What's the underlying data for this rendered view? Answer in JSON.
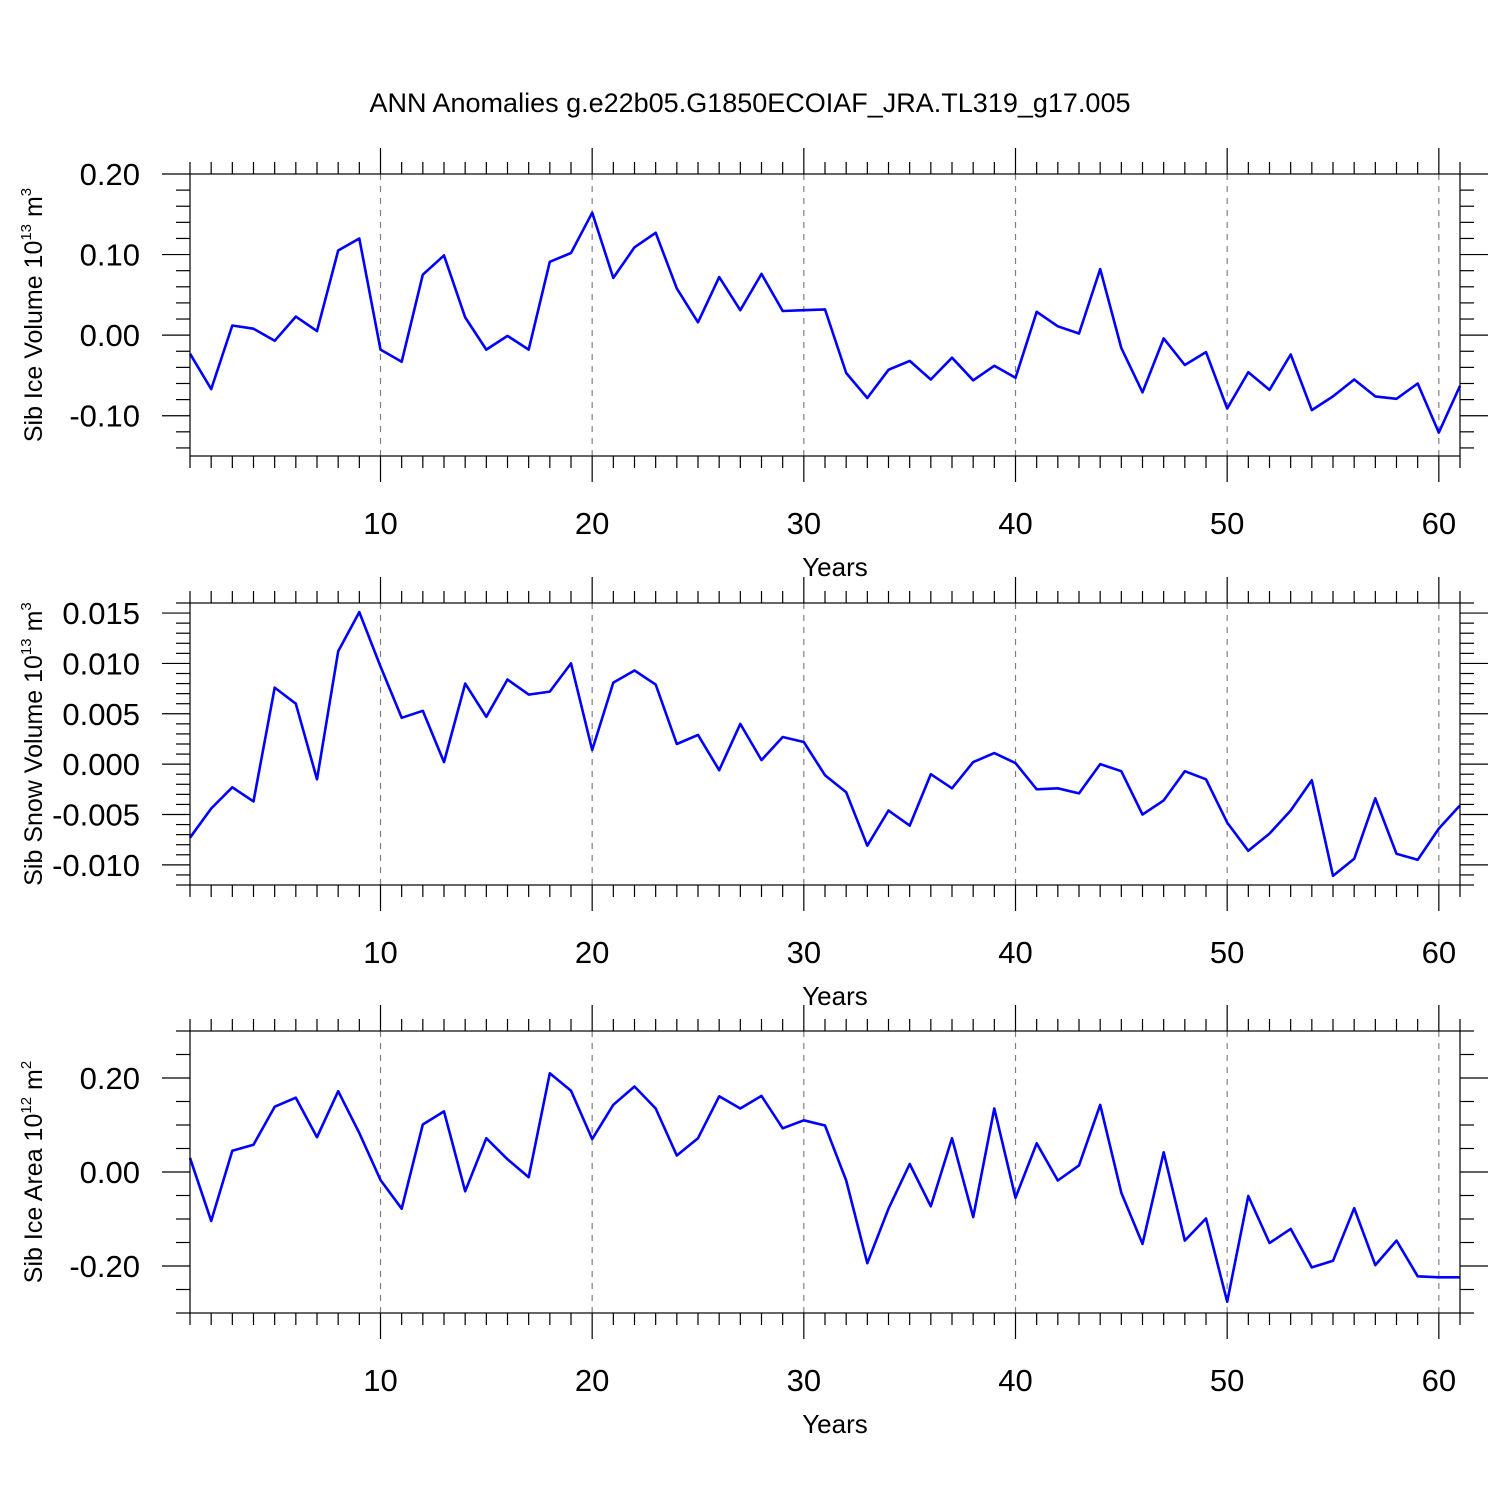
{
  "title": "ANN Anomalies g.e22b05.G1850ECOIAF_JRA.TL319_g17.005",
  "colors": {
    "line": "#0000ff",
    "frame": "#000000",
    "grid": "#808080"
  },
  "chart_data": [
    {
      "type": "line",
      "xlabel": "Years",
      "ylabel": {
        "text": "Sib Ice Volume 10",
        "exp": "13",
        "unit_text": " m",
        "unit_exp": "3"
      },
      "xlim": [
        1,
        61
      ],
      "ylim": [
        -0.15,
        0.2
      ],
      "xticks": [
        10,
        20,
        30,
        40,
        50,
        60
      ],
      "yticks": [
        0.2,
        0.1,
        0.0,
        -0.1
      ],
      "ytick_labels": [
        "0.20",
        "0.10",
        "0.00",
        "-0.10"
      ],
      "ytick_minor_step": 0.02,
      "x": [
        1,
        2,
        3,
        4,
        5,
        6,
        7,
        8,
        9,
        10,
        11,
        12,
        13,
        14,
        15,
        16,
        17,
        18,
        19,
        20,
        21,
        22,
        23,
        24,
        25,
        26,
        27,
        28,
        29,
        30,
        31,
        32,
        33,
        34,
        35,
        36,
        37,
        38,
        39,
        40,
        41,
        42,
        43,
        44,
        45,
        46,
        47,
        48,
        49,
        50,
        51,
        52,
        53,
        54,
        55,
        56,
        57,
        58,
        59,
        60,
        61
      ],
      "series": [
        {
          "values": [
            -0.023,
            -0.067,
            0.012,
            0.008,
            -0.007,
            0.023,
            0.005,
            0.105,
            0.12,
            -0.018,
            -0.033,
            0.075,
            0.099,
            0.022,
            -0.018,
            -0.001,
            -0.018,
            0.091,
            0.102,
            0.152,
            0.071,
            0.109,
            0.127,
            0.058,
            0.016,
            0.072,
            0.031,
            0.076,
            0.03,
            0.031,
            0.032,
            -0.047,
            -0.078,
            -0.043,
            -0.032,
            -0.055,
            -0.028,
            -0.056,
            -0.038,
            -0.053,
            0.029,
            0.011,
            0.002,
            0.082,
            -0.016,
            -0.071,
            -0.004,
            -0.037,
            -0.021,
            -0.091,
            -0.046,
            -0.068,
            -0.024,
            -0.093,
            -0.076,
            -0.055,
            -0.076,
            -0.079,
            -0.06,
            -0.121,
            -0.063
          ]
        }
      ]
    },
    {
      "type": "line",
      "xlabel": "Years",
      "ylabel": {
        "text": "Sib Snow Volume 10",
        "exp": "13",
        "unit_text": " m",
        "unit_exp": "3"
      },
      "xlim": [
        1,
        61
      ],
      "ylim": [
        -0.012,
        0.016
      ],
      "xticks": [
        10,
        20,
        30,
        40,
        50,
        60
      ],
      "yticks": [
        0.015,
        0.01,
        0.005,
        0.0,
        -0.005,
        -0.01
      ],
      "ytick_labels": [
        "0.015",
        "0.010",
        "0.005",
        "0.000",
        "-0.005",
        "-0.010"
      ],
      "ytick_minor_step": 0.001,
      "x": [
        1,
        2,
        3,
        4,
        5,
        6,
        7,
        8,
        9,
        10,
        11,
        12,
        13,
        14,
        15,
        16,
        17,
        18,
        19,
        20,
        21,
        22,
        23,
        24,
        25,
        26,
        27,
        28,
        29,
        30,
        31,
        32,
        33,
        34,
        35,
        36,
        37,
        38,
        39,
        40,
        41,
        42,
        43,
        44,
        45,
        46,
        47,
        48,
        49,
        50,
        51,
        52,
        53,
        54,
        55,
        56,
        57,
        58,
        59,
        60,
        61
      ],
      "series": [
        {
          "values": [
            -0.0073,
            -0.0044,
            -0.0023,
            -0.0037,
            0.0076,
            0.006,
            -0.0015,
            0.0112,
            0.0151,
            0.0097,
            0.0046,
            0.0053,
            0.0002,
            0.008,
            0.0047,
            0.0084,
            0.0069,
            0.0072,
            0.01,
            0.0014,
            0.0081,
            0.0093,
            0.0079,
            0.002,
            0.0029,
            -0.0006,
            0.004,
            0.0004,
            0.0027,
            0.0022,
            -0.0011,
            -0.0028,
            -0.0081,
            -0.0046,
            -0.0061,
            -0.001,
            -0.0024,
            0.0002,
            0.0011,
            0.0001,
            -0.0025,
            -0.0024,
            -0.0029,
            -0.0,
            -0.0007,
            -0.005,
            -0.0036,
            -0.0007,
            -0.0015,
            -0.0058,
            -0.0086,
            -0.0069,
            -0.0046,
            -0.0016,
            -0.0111,
            -0.0094,
            -0.0034,
            -0.0089,
            -0.0095,
            -0.0064,
            -0.0041
          ]
        }
      ]
    },
    {
      "type": "line",
      "xlabel": "Years",
      "ylabel": {
        "text": "Sib Ice Area 10",
        "exp": "12",
        "unit_text": " m",
        "unit_exp": "2"
      },
      "xlim": [
        1,
        61
      ],
      "ylim": [
        -0.3,
        0.3
      ],
      "xticks": [
        10,
        20,
        30,
        40,
        50,
        60
      ],
      "yticks": [
        0.2,
        0.0,
        -0.2
      ],
      "ytick_labels": [
        "0.20",
        "0.00",
        "-0.20"
      ],
      "ytick_minor_step": 0.05,
      "x": [
        1,
        2,
        3,
        4,
        5,
        6,
        7,
        8,
        9,
        10,
        11,
        12,
        13,
        14,
        15,
        16,
        17,
        18,
        19,
        20,
        21,
        22,
        23,
        24,
        25,
        26,
        27,
        28,
        29,
        30,
        31,
        32,
        33,
        34,
        35,
        36,
        37,
        38,
        39,
        40,
        41,
        42,
        43,
        44,
        45,
        46,
        47,
        48,
        49,
        50,
        51,
        52,
        53,
        54,
        55,
        56,
        57,
        58,
        59,
        60,
        61
      ],
      "series": [
        {
          "values": [
            0.03,
            -0.104,
            0.045,
            0.058,
            0.139,
            0.158,
            0.074,
            0.172,
            0.083,
            -0.017,
            -0.078,
            0.101,
            0.129,
            -0.041,
            0.072,
            0.027,
            -0.011,
            0.21,
            0.173,
            0.07,
            0.143,
            0.182,
            0.135,
            0.035,
            0.072,
            0.161,
            0.135,
            0.162,
            0.093,
            0.11,
            0.099,
            -0.018,
            -0.194,
            -0.078,
            0.017,
            -0.073,
            0.072,
            -0.096,
            0.135,
            -0.055,
            0.061,
            -0.018,
            0.014,
            0.143,
            -0.044,
            -0.153,
            0.042,
            -0.146,
            -0.099,
            -0.276,
            -0.051,
            -0.151,
            -0.121,
            -0.203,
            -0.189,
            -0.077,
            -0.198,
            -0.146,
            -0.222,
            -0.224,
            -0.224
          ]
        }
      ]
    }
  ]
}
